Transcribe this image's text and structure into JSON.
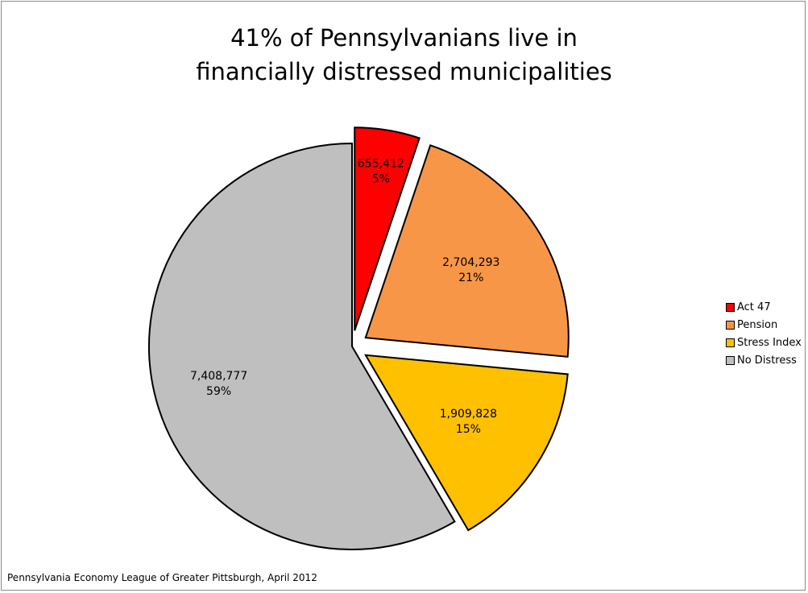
{
  "chart_data": {
    "type": "pie",
    "title_lines": [
      "41% of Pennsylvanians live in",
      "financially distressed municipalities"
    ],
    "slices": [
      {
        "name": "Act 47",
        "value": 655412,
        "value_label": "655,412",
        "percent_label": "5%",
        "color": "#ff0000"
      },
      {
        "name": "Pension",
        "value": 2704293,
        "value_label": "2,704,293",
        "percent_label": "21%",
        "color": "#f79646"
      },
      {
        "name": "Stress Index",
        "value": 1909828,
        "value_label": "1,909,828",
        "percent_label": "15%",
        "color": "#ffc000"
      },
      {
        "name": "No Distress",
        "value": 7408777,
        "value_label": "7,408,777",
        "percent_label": "59%",
        "color": "#bfbfbf"
      }
    ],
    "exploded": true,
    "legend_position": "right"
  },
  "source": "Pennsylvania Economy League of Greater Pittsburgh, April 2012"
}
